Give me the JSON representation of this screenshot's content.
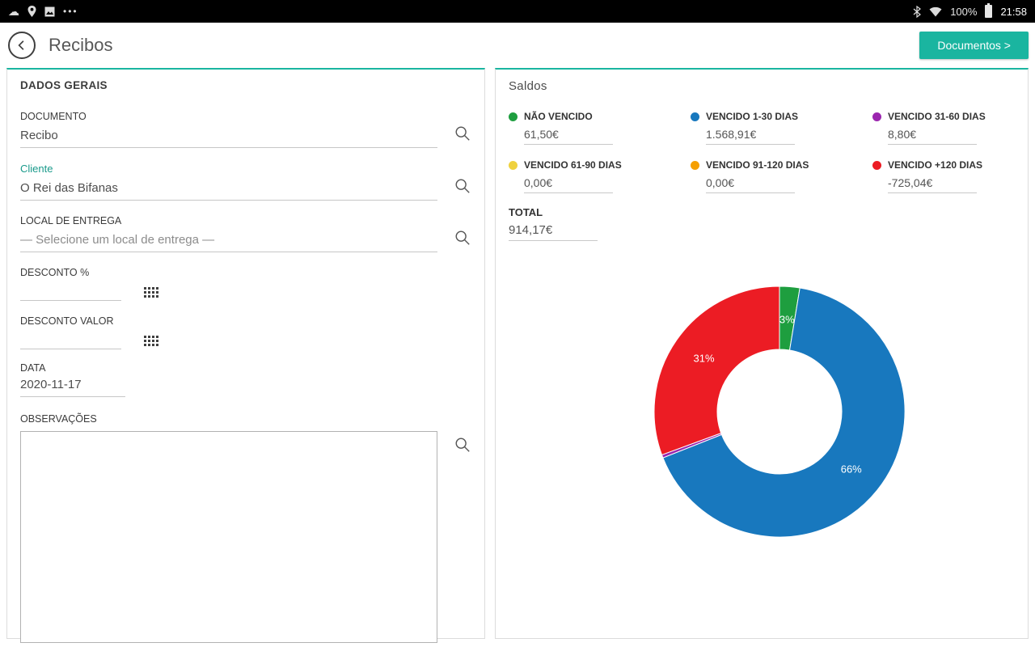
{
  "colors": {
    "accent": "#1ab5a0"
  },
  "status_bar": {
    "time": "21:58",
    "battery_percent": "100%",
    "more": "•••"
  },
  "header": {
    "title": "Recibos",
    "documentos_button": "Documentos >"
  },
  "general": {
    "section_title": "DADOS GERAIS",
    "fields": {
      "documento": {
        "label": "DOCUMENTO",
        "value": "Recibo"
      },
      "cliente": {
        "label": "Cliente",
        "value": "O Rei das Bifanas"
      },
      "local_entrega": {
        "label": "LOCAL DE ENTREGA",
        "value": "— Selecione um local de entrega —"
      },
      "desconto_pct": {
        "label": "DESCONTO %",
        "value": ""
      },
      "desconto_valor": {
        "label": "DESCONTO VALOR",
        "value": ""
      },
      "data": {
        "label": "DATA",
        "value": "2020-11-17"
      },
      "observacoes": {
        "label": "OBSERVAÇÕES",
        "value": ""
      }
    }
  },
  "saldos": {
    "section_title": "Saldos",
    "legend": [
      {
        "label": "NÃO VENCIDO",
        "value": "61,50€",
        "color": "#1e9e3f"
      },
      {
        "label": "VENCIDO 1-30 DIAS",
        "value": "1.568,91€",
        "color": "#1878be"
      },
      {
        "label": "VENCIDO 31-60 DIAS",
        "value": "8,80€",
        "color": "#9b26af"
      },
      {
        "label": "VENCIDO 61-90 DIAS",
        "value": "0,00€",
        "color": "#efd13e"
      },
      {
        "label": "VENCIDO 91-120 DIAS",
        "value": "0,00€",
        "color": "#f59f00"
      },
      {
        "label": "VENCIDO +120 DIAS",
        "value": "-725,04€",
        "color": "#ec1c24"
      }
    ],
    "total_label": "TOTAL",
    "total_value": "914,17€"
  },
  "chart_data": {
    "type": "pie",
    "subtype": "donut",
    "title": "Saldos",
    "categories": [
      "NÃO VENCIDO",
      "VENCIDO 1-30 DIAS",
      "VENCIDO 31-60 DIAS",
      "VENCIDO 61-90 DIAS",
      "VENCIDO 91-120 DIAS",
      "VENCIDO +120 DIAS"
    ],
    "values": [
      61.5,
      1568.91,
      8.8,
      0.0,
      0.0,
      -725.04
    ],
    "display_values": [
      "61,50€",
      "1.568,91€",
      "8,80€",
      "0,00€",
      "0,00€",
      "-725,04€"
    ],
    "colors": [
      "#1e9e3f",
      "#1878be",
      "#9b26af",
      "#efd13e",
      "#f59f00",
      "#ec1c24"
    ],
    "slice_fractions": [
      0.026,
      0.664,
      0.004,
      0,
      0,
      0.306
    ],
    "percent_labels": [
      "3%",
      "66%",
      "0%",
      "0%",
      "0%",
      "31%"
    ],
    "total": 914.17,
    "legend_position": "top"
  }
}
